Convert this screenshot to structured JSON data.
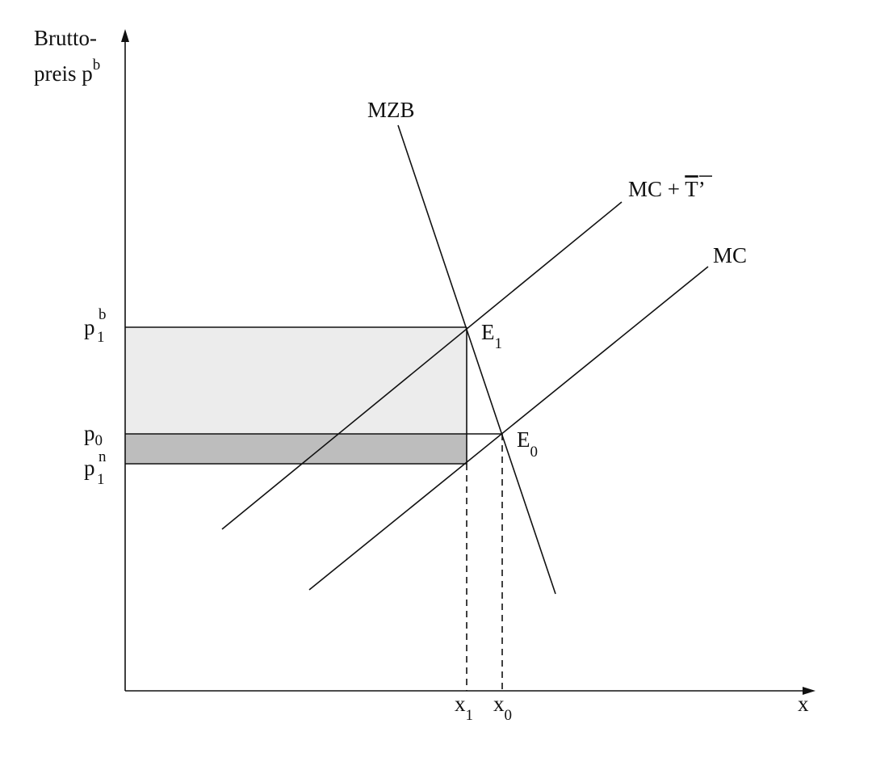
{
  "y_axis_label": {
    "line1": "Brutto-",
    "line2": "preis p",
    "sup": "b"
  },
  "x_axis_label": "x",
  "curves": [
    {
      "label": "MZB"
    },
    {
      "label_parts": [
        "MC + ",
        "T",
        "’"
      ]
    },
    {
      "label": "MC"
    }
  ],
  "points": [
    {
      "label": "E",
      "sub": "1"
    },
    {
      "label": "E",
      "sub": "0"
    }
  ],
  "price_labels": [
    {
      "base": "p",
      "sup": "b",
      "sub": "1"
    },
    {
      "base": "p",
      "sub": "0"
    },
    {
      "base": "p",
      "sup": "n",
      "sub": "1"
    }
  ],
  "quantity_labels": [
    {
      "base": "x",
      "sub": "1"
    },
    {
      "base": "x",
      "sub": "0"
    }
  ]
}
